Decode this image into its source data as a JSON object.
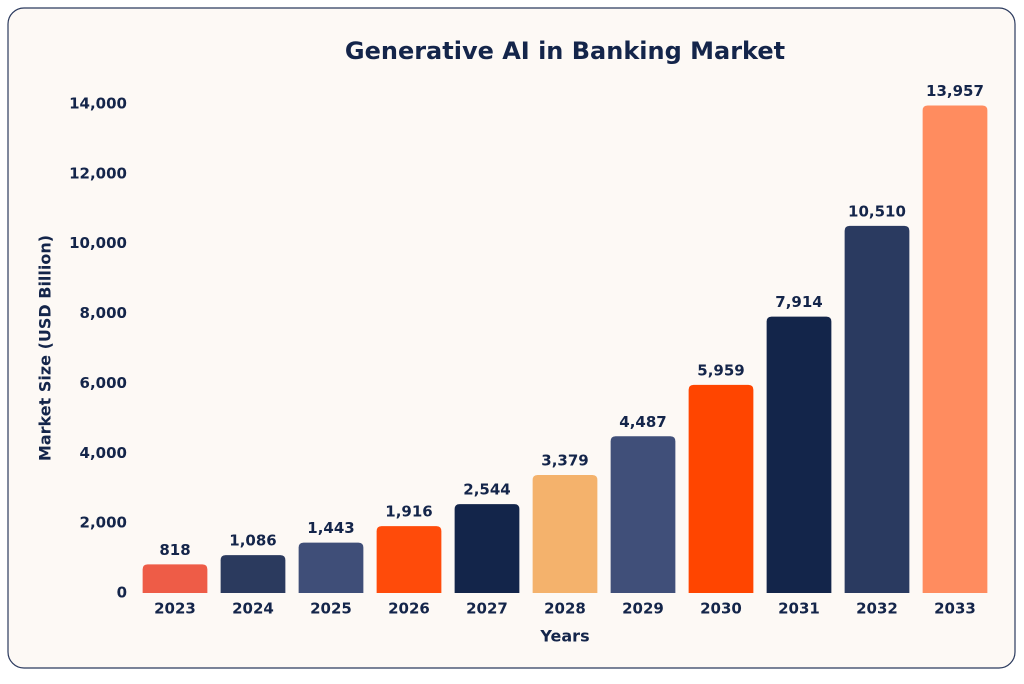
{
  "chart_data": {
    "type": "bar",
    "title": "Generative AI in Banking Market",
    "x_label": "Years",
    "y_label": "Market Size (USD Billion)",
    "categories": [
      "2023",
      "2024",
      "2025",
      "2026",
      "2027",
      "2028",
      "2029",
      "2030",
      "2031",
      "2032",
      "2033"
    ],
    "values": [
      818,
      1086,
      1443,
      1916,
      2544,
      3379,
      4487,
      5959,
      7914,
      10510,
      13957
    ],
    "value_labels": [
      "818",
      "1,086",
      "1,443",
      "1,916",
      "2,544",
      "3,379",
      "4,487",
      "5,959",
      "7,914",
      "10,510",
      "13,957"
    ],
    "colors": [
      "#ee5c47",
      "#2b3a5e",
      "#3f4e78",
      "#ff4b0a",
      "#13254a",
      "#f4b26c",
      "#404f79",
      "#ff4500",
      "#13254a",
      "#2a3a60",
      "#ff8c5f"
    ],
    "ylim": [
      0,
      14000
    ],
    "yticks": [
      0,
      {
        "value": 2000,
        "label": "2,000"
      },
      {
        "value": 4000,
        "label": "4,000"
      },
      {
        "value": 6000,
        "label": "6,000"
      },
      {
        "value": 8000,
        "label": "8,000"
      },
      {
        "value": 10000,
        "label": "10,000"
      },
      {
        "value": 12000,
        "label": "12,000"
      },
      {
        "value": 14000,
        "label": "14,000"
      }
    ],
    "grid": false
  }
}
